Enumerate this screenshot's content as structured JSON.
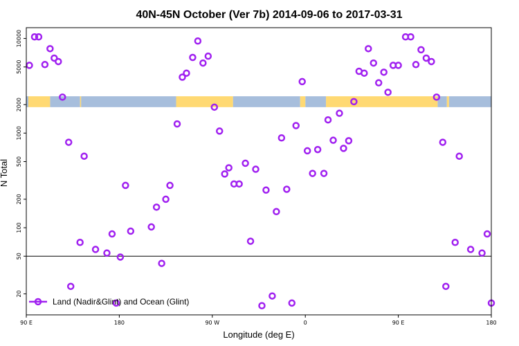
{
  "chart_data": {
    "type": "scatter",
    "title": "40N-45N October (Ver 7b)   2014-09-06 to 2017-03-31",
    "xlabel": "Longitude (deg E)",
    "ylabel": "N Total",
    "y_scale": "log",
    "xlim": [
      90,
      540
    ],
    "ylim": [
      12,
      13000
    ],
    "x_ticks": [
      {
        "value": 90,
        "label": "90 E"
      },
      {
        "value": 180,
        "label": "180"
      },
      {
        "value": 270,
        "label": "90 W"
      },
      {
        "value": 360,
        "label": "0"
      },
      {
        "value": 450,
        "label": "90 E"
      },
      {
        "value": 540,
        "label": "180"
      }
    ],
    "y_ticks": [
      {
        "value": 20,
        "label": "20"
      },
      {
        "value": 50,
        "label": "50"
      },
      {
        "value": 100,
        "label": "100"
      },
      {
        "value": 200,
        "label": "200"
      },
      {
        "value": 500,
        "label": "500"
      },
      {
        "value": 1000,
        "label": "1000"
      },
      {
        "value": 2000,
        "label": "2000"
      },
      {
        "value": 5000,
        "label": "5000"
      },
      {
        "value": 10000,
        "label": "10000"
      }
    ],
    "reference_line_y": 50,
    "grid": false,
    "legend": {
      "position": "bottom-left",
      "entries": [
        {
          "label": "Land (Nadir&Glint) and Ocean (Glint)",
          "color": "#a020f0"
        }
      ]
    },
    "series": [
      {
        "name": "Land (Nadir&Glint) and Ocean (Glint)",
        "color": "#a020f0",
        "points": [
          [
            93,
            5200
          ],
          [
            98,
            10400
          ],
          [
            102,
            10400
          ],
          [
            108,
            5300
          ],
          [
            113,
            7800
          ],
          [
            117,
            6200
          ],
          [
            121,
            5700
          ],
          [
            125,
            2400
          ],
          [
            131,
            800
          ],
          [
            133,
            24
          ],
          [
            142,
            70
          ],
          [
            146,
            570
          ],
          [
            157,
            59
          ],
          [
            168,
            54
          ],
          [
            173,
            86
          ],
          [
            177,
            16
          ],
          [
            181,
            49
          ],
          [
            186,
            280
          ],
          [
            191,
            92
          ],
          [
            211,
            102
          ],
          [
            216,
            165
          ],
          [
            221,
            42
          ],
          [
            225,
            200
          ],
          [
            229,
            280
          ],
          [
            236,
            1250
          ],
          [
            241,
            3900
          ],
          [
            245,
            4300
          ],
          [
            251,
            6300
          ],
          [
            256,
            9400
          ],
          [
            261,
            5500
          ],
          [
            266,
            6500
          ],
          [
            272,
            1880
          ],
          [
            277,
            1050
          ],
          [
            282,
            370
          ],
          [
            286,
            430
          ],
          [
            291,
            290
          ],
          [
            296,
            290
          ],
          [
            302,
            480
          ],
          [
            307,
            72
          ],
          [
            312,
            415
          ],
          [
            318,
            15
          ],
          [
            322,
            250
          ],
          [
            328,
            19
          ],
          [
            332,
            148
          ],
          [
            337,
            890
          ],
          [
            342,
            255
          ],
          [
            347,
            16
          ],
          [
            351,
            1200
          ],
          [
            357,
            3500
          ],
          [
            362,
            650
          ],
          [
            367,
            375
          ],
          [
            372,
            670
          ],
          [
            378,
            375
          ],
          [
            382,
            1380
          ],
          [
            387,
            840
          ],
          [
            393,
            1620
          ],
          [
            397,
            690
          ],
          [
            402,
            830
          ],
          [
            407,
            2150
          ],
          [
            412,
            4500
          ],
          [
            417,
            4300
          ],
          [
            421,
            7800
          ],
          [
            426,
            5500
          ],
          [
            431,
            3400
          ],
          [
            436,
            4400
          ],
          [
            440,
            2700
          ],
          [
            445,
            5200
          ],
          [
            450,
            5200
          ],
          [
            457,
            10400
          ],
          [
            462,
            10400
          ],
          [
            467,
            5300
          ],
          [
            472,
            7600
          ],
          [
            477,
            6200
          ],
          [
            482,
            5700
          ],
          [
            487,
            2400
          ],
          [
            493,
            800
          ],
          [
            496,
            24
          ],
          [
            505,
            70
          ],
          [
            509,
            570
          ],
          [
            520,
            59
          ],
          [
            531,
            54
          ],
          [
            536,
            86
          ],
          [
            540,
            16
          ]
        ]
      }
    ],
    "band": {
      "y_range": [
        1880,
        2450
      ],
      "legend": "",
      "colors": {
        "land": "#ffd973",
        "ocean": "#a7bedc"
      },
      "land_segments": [
        [
          92,
          113
        ],
        [
          142,
          143
        ],
        [
          235,
          290
        ],
        [
          355,
          360
        ],
        [
          380,
          488
        ],
        [
          497,
          499
        ]
      ],
      "ocean_segments": [
        [
          90,
          92
        ],
        [
          113,
          142
        ],
        [
          143,
          235
        ],
        [
          290,
          355
        ],
        [
          360,
          380
        ],
        [
          488,
          497
        ],
        [
          499,
          540
        ]
      ]
    }
  }
}
